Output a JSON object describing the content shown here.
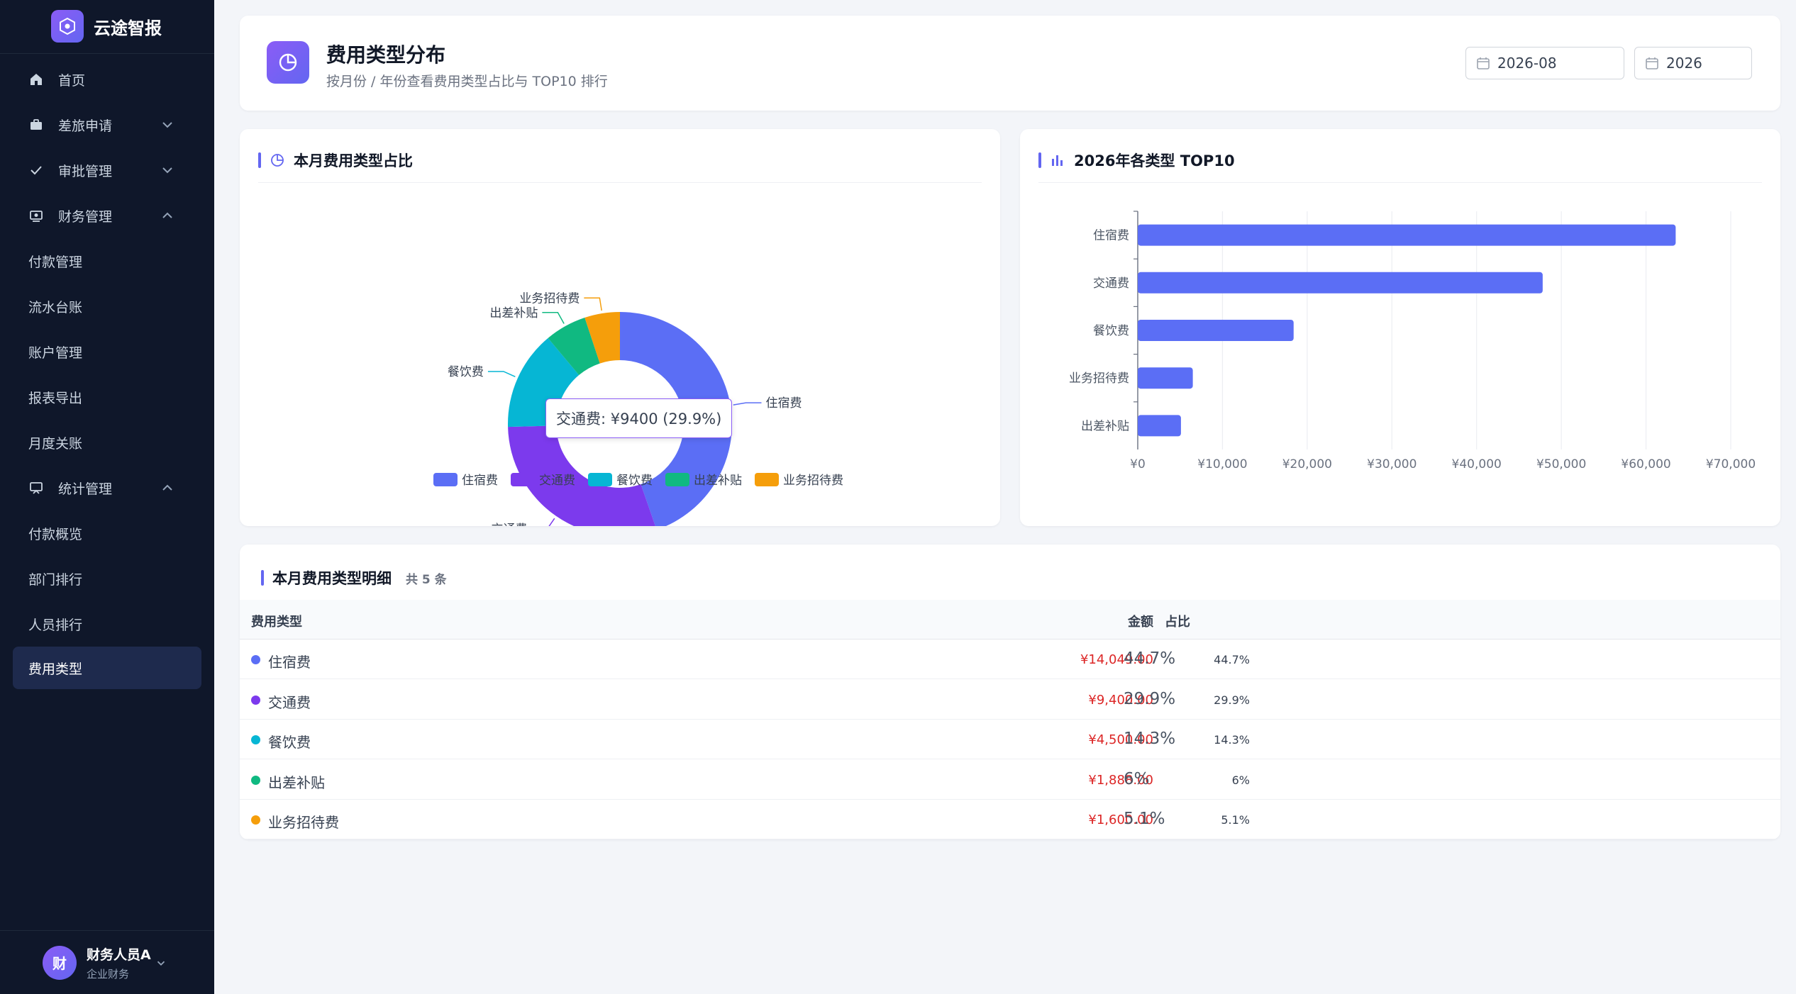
{
  "brand": {
    "title": "云途智报"
  },
  "nav": {
    "home": "首页",
    "travel": "差旅申请",
    "approval": "审批管理",
    "finance": "财务管理",
    "finance_children": [
      "付款管理",
      "流水台账",
      "账户管理",
      "报表导出",
      "月度关账"
    ],
    "stats": "统计管理",
    "stats_children": [
      "付款概览",
      "部门排行",
      "人员排行",
      "费用类型"
    ]
  },
  "user": {
    "avatar_char": "财",
    "name": "财务人员A",
    "role": "企业财务"
  },
  "header": {
    "title": "费用类型分布",
    "subtitle": "按月份 / 年份查看费用类型占比与 TOP10 排行",
    "month_value": "2026-08",
    "year_value": "2026"
  },
  "pie_card": {
    "title": "本月费用类型占比"
  },
  "bar_card": {
    "title": "2026年各类型 TOP10"
  },
  "tooltip": {
    "text": "交通费: ¥9400 (29.9%)"
  },
  "colors": {
    "accent": "#6366f1",
    "lodging": "#5b6ef5",
    "transport": "#7c3aed",
    "meals": "#06b6d4",
    "allowance": "#10b981",
    "entertainment": "#f59e0b"
  },
  "chart_data": [
    {
      "type": "pie",
      "title": "本月费用类型占比",
      "labels": [
        "住宿费",
        "交通费",
        "餐饮费",
        "出差补贴",
        "业务招待费"
      ],
      "values": [
        14049,
        9400,
        4500,
        1888,
        1600
      ],
      "colors": [
        "#5b6ef5",
        "#7c3aed",
        "#06b6d4",
        "#10b981",
        "#f59e0b"
      ],
      "legend_position": "bottom",
      "donut": true
    },
    {
      "type": "bar",
      "orientation": "horizontal",
      "title": "2026年各类型 TOP10",
      "categories": [
        "住宿费",
        "交通费",
        "餐饮费",
        "业务招待费",
        "出差补贴"
      ],
      "values": [
        63500,
        47800,
        18400,
        6500,
        5100
      ],
      "xlim": [
        0,
        70000
      ],
      "xticks": [
        "¥0",
        "¥10,000",
        "¥20,000",
        "¥30,000",
        "¥40,000",
        "¥50,000",
        "¥60,000",
        "¥70,000"
      ],
      "grid": true,
      "color": "#5b6ef5"
    }
  ],
  "table": {
    "title": "本月费用类型明细",
    "count": "共 5 条",
    "columns": {
      "type": "费用类型",
      "amount": "金额",
      "pct": "占比"
    },
    "rows": [
      {
        "type": "住宿费",
        "amount": "¥14,049.00",
        "pct": "44.7%",
        "pct_small": "44.7%",
        "color": "#5b6ef5"
      },
      {
        "type": "交通费",
        "amount": "¥9,400.00",
        "pct": "29.9%",
        "pct_small": "29.9%",
        "color": "#7c3aed"
      },
      {
        "type": "餐饮费",
        "amount": "¥4,500.00",
        "pct": "14.3%",
        "pct_small": "14.3%",
        "color": "#06b6d4"
      },
      {
        "type": "出差补贴",
        "amount": "¥1,888.00",
        "pct": "6%",
        "pct_small": "6%",
        "color": "#10b981"
      },
      {
        "type": "业务招待费",
        "amount": "¥1,600.00",
        "pct": "5.1%",
        "pct_small": "5.1%",
        "color": "#f59e0b"
      }
    ]
  }
}
